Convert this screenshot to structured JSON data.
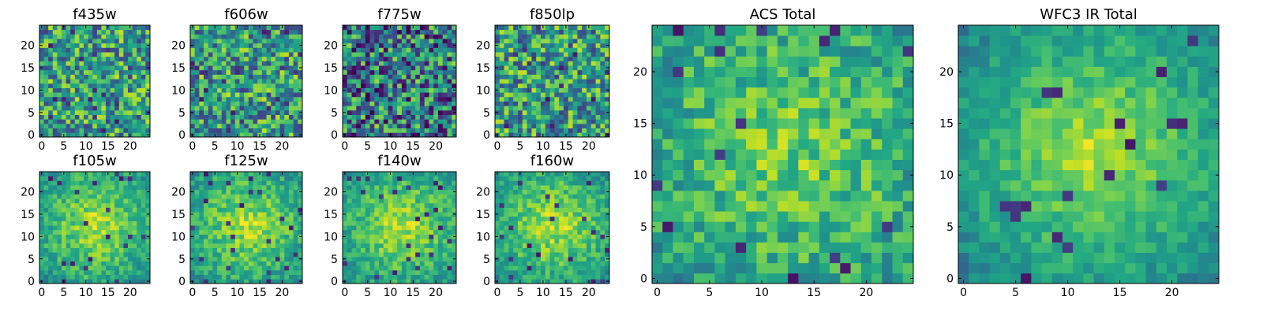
{
  "chart_data": [
    {
      "type": "heatmap",
      "title": "f435w",
      "x_ticks": [
        "0",
        "5",
        "10",
        "15",
        "20"
      ],
      "y_ticks": [
        "0",
        "5",
        "10",
        "15",
        "20"
      ],
      "grid_size": 25,
      "xlim": [
        -0.5,
        24.5
      ],
      "ylim": [
        -0.5,
        24.5
      ],
      "colormap": "viridis",
      "texture": "noisy",
      "seed": 11
    },
    {
      "type": "heatmap",
      "title": "f606w",
      "x_ticks": [
        "0",
        "5",
        "10",
        "15",
        "20"
      ],
      "y_ticks": [
        "0",
        "5",
        "10",
        "15",
        "20"
      ],
      "grid_size": 25,
      "xlim": [
        -0.5,
        24.5
      ],
      "ylim": [
        -0.5,
        24.5
      ],
      "colormap": "viridis",
      "texture": "noisy",
      "seed": 23
    },
    {
      "type": "heatmap",
      "title": "f775w",
      "x_ticks": [
        "0",
        "5",
        "10",
        "15",
        "20"
      ],
      "y_ticks": [
        "0",
        "5",
        "10",
        "15",
        "20"
      ],
      "grid_size": 25,
      "xlim": [
        -0.5,
        24.5
      ],
      "ylim": [
        -0.5,
        24.5
      ],
      "colormap": "viridis",
      "texture": "dark",
      "seed": 37
    },
    {
      "type": "heatmap",
      "title": "f850lp",
      "x_ticks": [
        "0",
        "5",
        "10",
        "15",
        "20"
      ],
      "y_ticks": [
        "0",
        "5",
        "10",
        "15",
        "20"
      ],
      "grid_size": 25,
      "xlim": [
        -0.5,
        24.5
      ],
      "ylim": [
        -0.5,
        24.5
      ],
      "colormap": "viridis",
      "texture": "noisy",
      "seed": 41
    },
    {
      "type": "heatmap",
      "title": "f105w",
      "x_ticks": [
        "0",
        "5",
        "10",
        "15",
        "20"
      ],
      "y_ticks": [
        "0",
        "5",
        "10",
        "15",
        "20"
      ],
      "grid_size": 25,
      "xlim": [
        -0.5,
        24.5
      ],
      "ylim": [
        -0.5,
        24.5
      ],
      "colormap": "viridis",
      "texture": "blob",
      "seed": 53
    },
    {
      "type": "heatmap",
      "title": "f125w",
      "x_ticks": [
        "0",
        "5",
        "10",
        "15",
        "20"
      ],
      "y_ticks": [
        "0",
        "5",
        "10",
        "15",
        "20"
      ],
      "grid_size": 25,
      "xlim": [
        -0.5,
        24.5
      ],
      "ylim": [
        -0.5,
        24.5
      ],
      "colormap": "viridis",
      "texture": "blob",
      "seed": 67
    },
    {
      "type": "heatmap",
      "title": "f140w",
      "x_ticks": [
        "0",
        "5",
        "10",
        "15",
        "20"
      ],
      "y_ticks": [
        "0",
        "5",
        "10",
        "15",
        "20"
      ],
      "grid_size": 25,
      "xlim": [
        -0.5,
        24.5
      ],
      "ylim": [
        -0.5,
        24.5
      ],
      "colormap": "viridis",
      "texture": "blob",
      "seed": 71
    },
    {
      "type": "heatmap",
      "title": "f160w",
      "x_ticks": [
        "0",
        "5",
        "10",
        "15",
        "20"
      ],
      "y_ticks": [
        "0",
        "5",
        "10",
        "15",
        "20"
      ],
      "grid_size": 25,
      "xlim": [
        -0.5,
        24.5
      ],
      "ylim": [
        -0.5,
        24.5
      ],
      "colormap": "viridis",
      "texture": "blob",
      "seed": 83
    },
    {
      "type": "heatmap",
      "title": "ACS Total",
      "x_ticks": [
        "0",
        "5",
        "10",
        "15",
        "20"
      ],
      "y_ticks": [
        "0",
        "5",
        "10",
        "15",
        "20"
      ],
      "grid_size": 25,
      "xlim": [
        -0.5,
        24.5
      ],
      "ylim": [
        -0.5,
        24.5
      ],
      "colormap": "viridis",
      "texture": "mixed",
      "seed": 97
    },
    {
      "type": "heatmap",
      "title": "WFC3 IR Total",
      "x_ticks": [
        "0",
        "5",
        "10",
        "15",
        "20"
      ],
      "y_ticks": [
        "0",
        "5",
        "10",
        "15",
        "20"
      ],
      "grid_size": 25,
      "xlim": [
        -0.5,
        24.5
      ],
      "ylim": [
        -0.5,
        24.5
      ],
      "colormap": "viridis",
      "texture": "smooth",
      "seed": 101
    }
  ]
}
